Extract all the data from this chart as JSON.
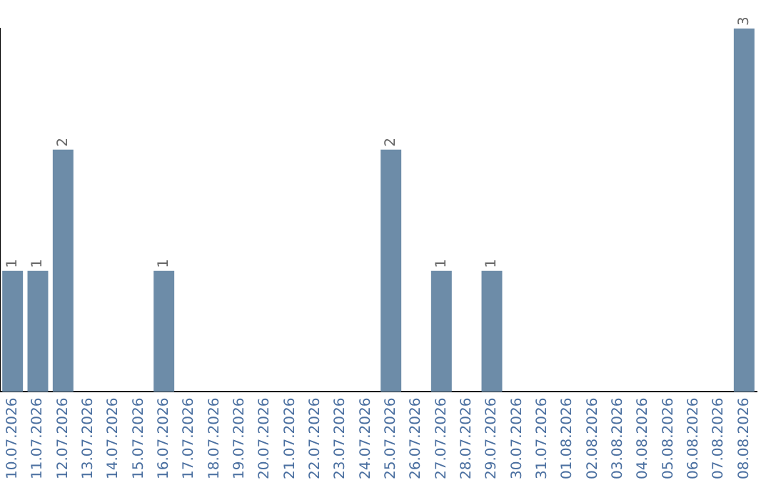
{
  "chart_data": {
    "type": "bar",
    "categories": [
      "10.07.2026",
      "11.07.2026",
      "12.07.2026",
      "13.07.2026",
      "14.07.2026",
      "15.07.2026",
      "16.07.2026",
      "17.07.2026",
      "18.07.2026",
      "19.07.2026",
      "20.07.2026",
      "21.07.2026",
      "22.07.2026",
      "23.07.2026",
      "24.07.2026",
      "25.07.2026",
      "26.07.2026",
      "27.07.2026",
      "28.07.2026",
      "29.07.2026",
      "30.07.2026",
      "31.07.2026",
      "01.08.2026",
      "02.08.2026",
      "03.08.2026",
      "04.08.2026",
      "05.08.2026",
      "06.08.2026",
      "07.08.2026",
      "08.08.2026"
    ],
    "values": [
      1,
      1,
      2,
      0,
      0,
      0,
      1,
      0,
      0,
      0,
      0,
      0,
      0,
      0,
      0,
      2,
      0,
      1,
      0,
      1,
      0,
      0,
      0,
      0,
      0,
      0,
      0,
      0,
      0,
      3
    ],
    "value_labels": [
      "1",
      "1",
      "2",
      null,
      null,
      null,
      "1",
      null,
      null,
      null,
      null,
      null,
      null,
      null,
      null,
      "2",
      null,
      "1",
      null,
      "1",
      null,
      null,
      null,
      null,
      null,
      null,
      null,
      null,
      null,
      "3"
    ],
    "color": "#6d8ca8",
    "ylim": [
      0,
      3
    ],
    "tick_labels": "x",
    "grid": false,
    "legend": false
  }
}
